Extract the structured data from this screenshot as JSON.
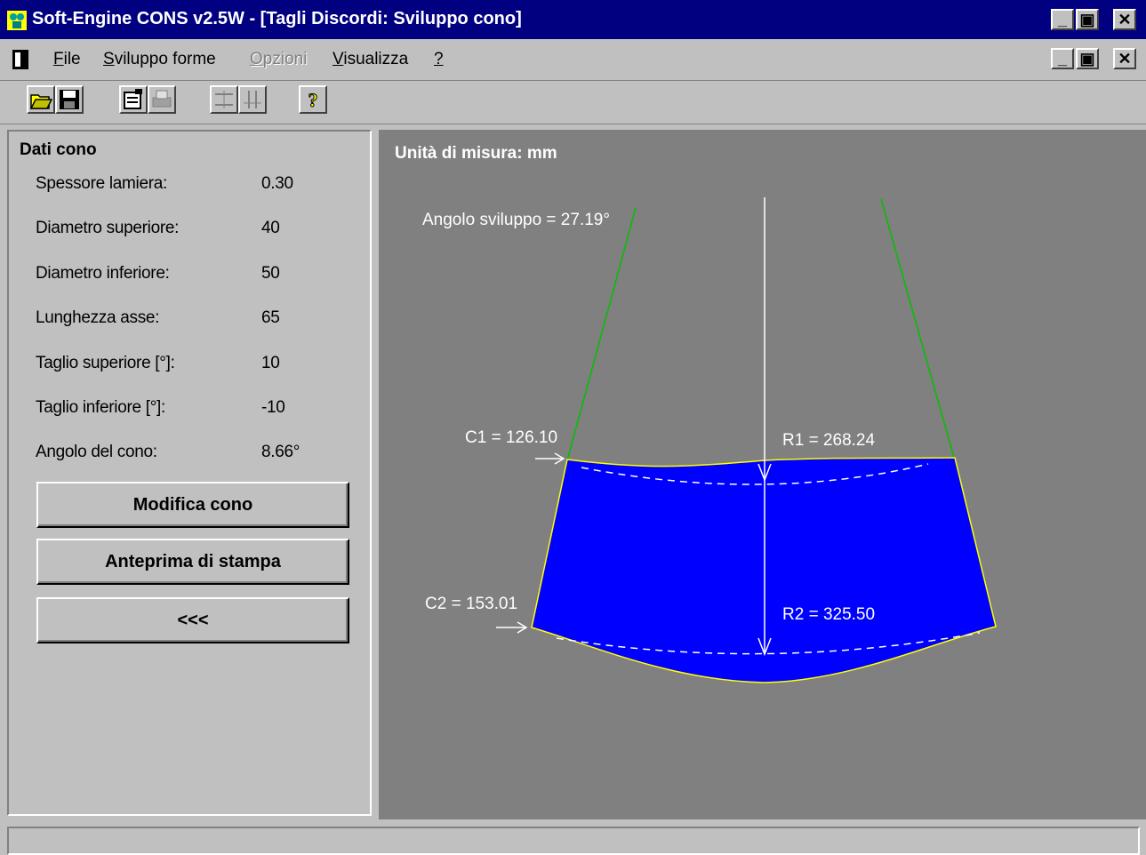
{
  "window": {
    "title": "Soft-Engine   CONS v2.5W - [Tagli Discordi: Sviluppo cono]",
    "controls": {
      "minimize": "_",
      "restore": "▣",
      "close": "✕"
    }
  },
  "menu": {
    "items": [
      {
        "label": "File",
        "underline": "F",
        "rest": "ile",
        "enabled": true
      },
      {
        "label": "Sviluppo forme",
        "underline": "S",
        "rest": "viluppo forme",
        "enabled": true
      },
      {
        "label": "Opzioni",
        "underline": "O",
        "rest": "pzioni",
        "enabled": false
      },
      {
        "label": "Visualizza",
        "underline": "V",
        "rest": "isualizza",
        "enabled": true
      },
      {
        "label": "?",
        "underline": "?",
        "rest": "",
        "enabled": true
      }
    ]
  },
  "toolbar": {
    "buttons": [
      {
        "icon": "open-folder-icon",
        "enabled": true
      },
      {
        "icon": "save-disk-icon",
        "enabled": true
      },
      {
        "icon": "properties-icon",
        "enabled": true
      },
      {
        "icon": "print-icon",
        "enabled": false
      },
      {
        "icon": "dimension-horizontal-icon",
        "enabled": false
      },
      {
        "icon": "dimension-vertical-icon",
        "enabled": false
      },
      {
        "icon": "help-icon",
        "enabled": true
      }
    ]
  },
  "panel": {
    "title": "Dati cono",
    "rows": [
      {
        "label": "Spessore lamiera:",
        "value": "0.30"
      },
      {
        "label": "Diametro superiore:",
        "value": "40"
      },
      {
        "label": "Diametro inferiore:",
        "value": "50"
      },
      {
        "label": "Lunghezza asse:",
        "value": "65"
      },
      {
        "label": "Taglio superiore [°]:",
        "value": "10"
      },
      {
        "label": "Taglio inferiore [°]:",
        "value": "-10"
      },
      {
        "label": "Angolo del cono:",
        "value": "8.66°"
      }
    ],
    "buttons": {
      "modify": "Modifica cono",
      "preview": "Anteprima di stampa",
      "back": "<<<"
    }
  },
  "drawing": {
    "units_label": "Unità di misura: mm",
    "angle_label": "Angolo sviluppo = 27.19°",
    "c1_label": "C1 = 126.10",
    "c2_label": "C2 = 153.01",
    "r1_label": "R1 = 268.24",
    "r2_label": "R2 = 325.50",
    "colors": {
      "background": "#808080",
      "fill": "#0000ff",
      "outline": "#ffff00",
      "construction": "#00c000",
      "annotation": "#ffffff"
    }
  },
  "statusbar": {
    "text": ""
  }
}
